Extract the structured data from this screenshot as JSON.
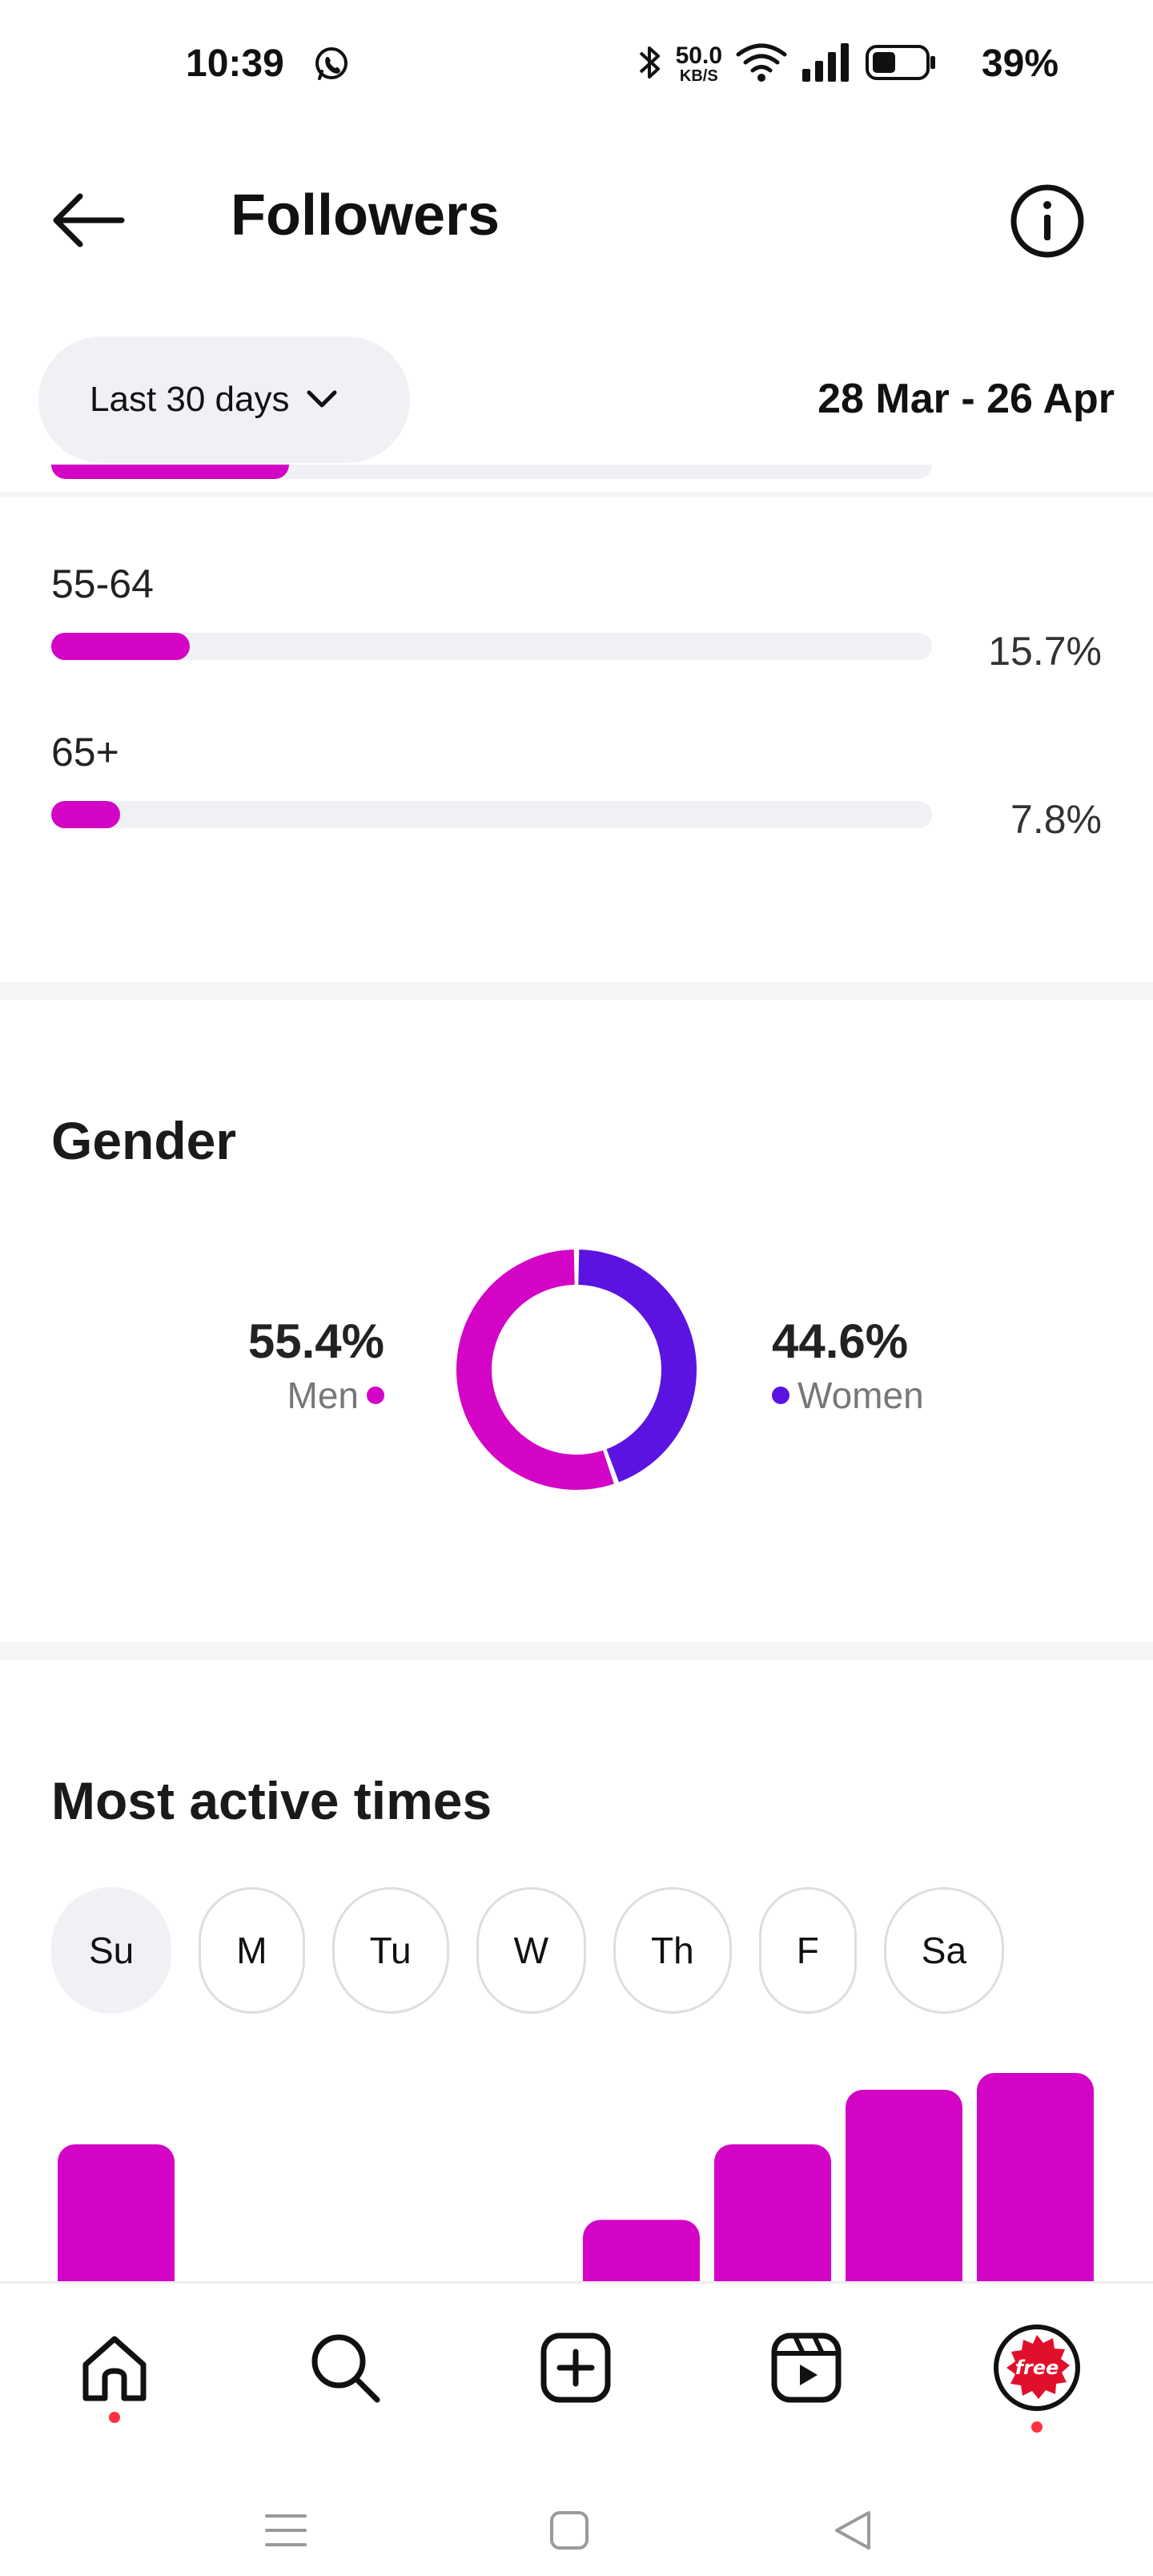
{
  "status_bar": {
    "time": "10:39",
    "net_speed_value": "50.0",
    "net_speed_unit": "KB/S",
    "battery_percent": "39%",
    "icons": [
      "whatsapp-icon",
      "bluetooth-icon",
      "wifi-icon",
      "signal-icon",
      "battery-icon"
    ]
  },
  "header": {
    "title": "Followers",
    "back_icon": "arrow-left-icon",
    "info_icon": "info-icon"
  },
  "filter": {
    "range_label": "Last 30 days",
    "date_range": "28 Mar - 26 Apr"
  },
  "age": {
    "clipped_row_fill": 0.27,
    "rows": [
      {
        "label": "55-64",
        "percent": "15.7%",
        "fill": 0.157
      },
      {
        "label": "65+",
        "percent": "7.8%",
        "fill": 0.078
      }
    ]
  },
  "gender": {
    "title": "Gender",
    "men": {
      "value": "55.4%",
      "label": "Men",
      "color": "#d304c6"
    },
    "women": {
      "value": "44.6%",
      "label": "Women",
      "color": "#5b13e2"
    }
  },
  "active_times": {
    "title": "Most active times",
    "days": [
      "Su",
      "M",
      "Tu",
      "W",
      "Th",
      "F",
      "Sa"
    ],
    "selected_day": "Su",
    "bar_color": "#d304c6",
    "bar_heights": [
      0.66,
      0,
      0,
      0,
      0.3,
      0.66,
      0.92,
      1.0
    ]
  },
  "bottom_nav": {
    "items": [
      "home-icon",
      "search-icon",
      "create-icon",
      "reels-icon",
      "profile-avatar"
    ],
    "avatar_text": "free"
  },
  "colors": {
    "accent": "#d304c6",
    "secondary": "#5b13e2",
    "notification": "#ff3040"
  }
}
